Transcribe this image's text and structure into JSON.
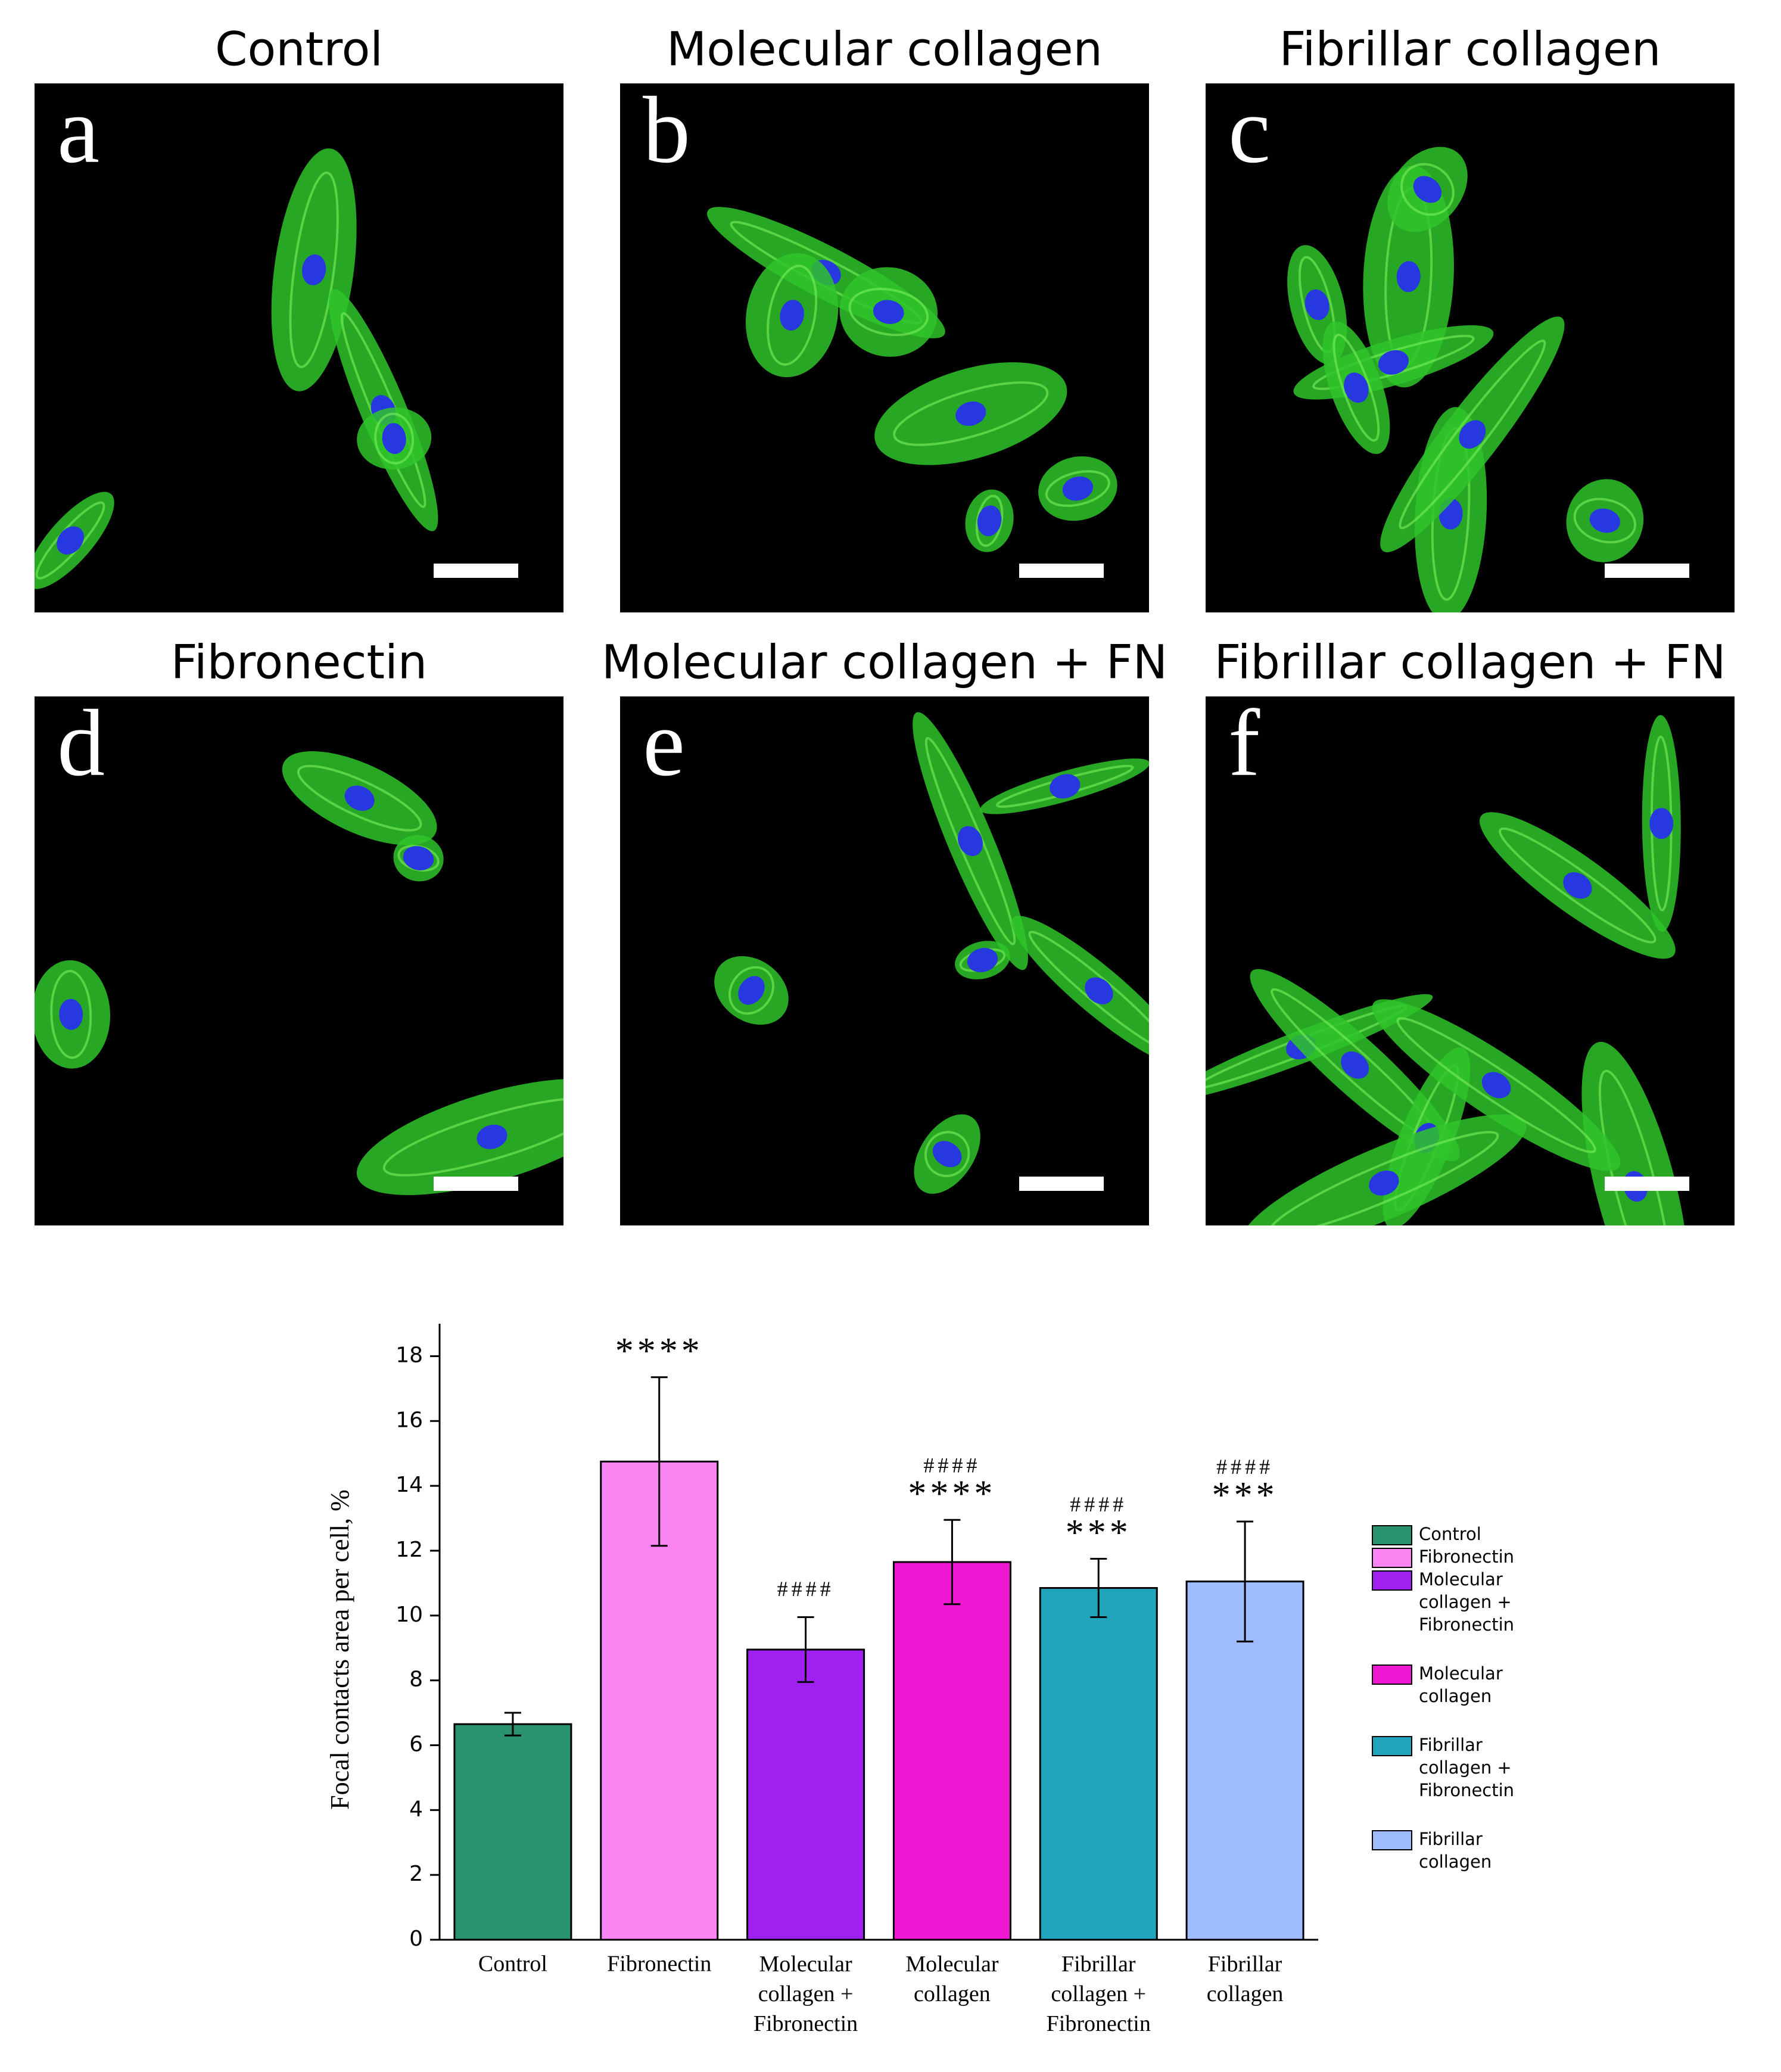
{
  "panels": [
    {
      "title": "Control",
      "letter": "a"
    },
    {
      "title": "Molecular collagen",
      "letter": "b"
    },
    {
      "title": "Fibrillar collagen",
      "letter": "c"
    },
    {
      "title": "Fibronectin",
      "letter": "d"
    },
    {
      "title": "Molecular collagen + FN",
      "letter": "e"
    },
    {
      "title": "Fibrillar collagen + FN",
      "letter": "f"
    }
  ],
  "chart_data": {
    "type": "bar",
    "y_label": "Focal contacts area per cell, %",
    "categories": [
      "Control",
      "Fibronectin",
      "Molecular\ncollagen +\nFibronectin",
      "Molecular\ncollagen",
      "Fibrillar\ncollagen +\nFibronectin",
      "Fibrillar\ncollagen"
    ],
    "values": [
      6.65,
      14.75,
      8.95,
      11.65,
      10.85,
      11.05
    ],
    "errors": [
      0.35,
      2.6,
      1.0,
      1.3,
      0.9,
      1.85
    ],
    "colors": [
      "#2a9171",
      "#f984f2",
      "#a020ef",
      "#ee18d2",
      "#22a4bd",
      "#9ebcff"
    ],
    "stars": [
      null,
      "****",
      null,
      "****",
      "***",
      "***"
    ],
    "hashes": [
      null,
      null,
      "####",
      "####",
      "####",
      "####"
    ],
    "ylim": [
      0,
      19
    ],
    "yticks": [
      0,
      2,
      4,
      6,
      8,
      10,
      12,
      14,
      16,
      18
    ]
  }
}
